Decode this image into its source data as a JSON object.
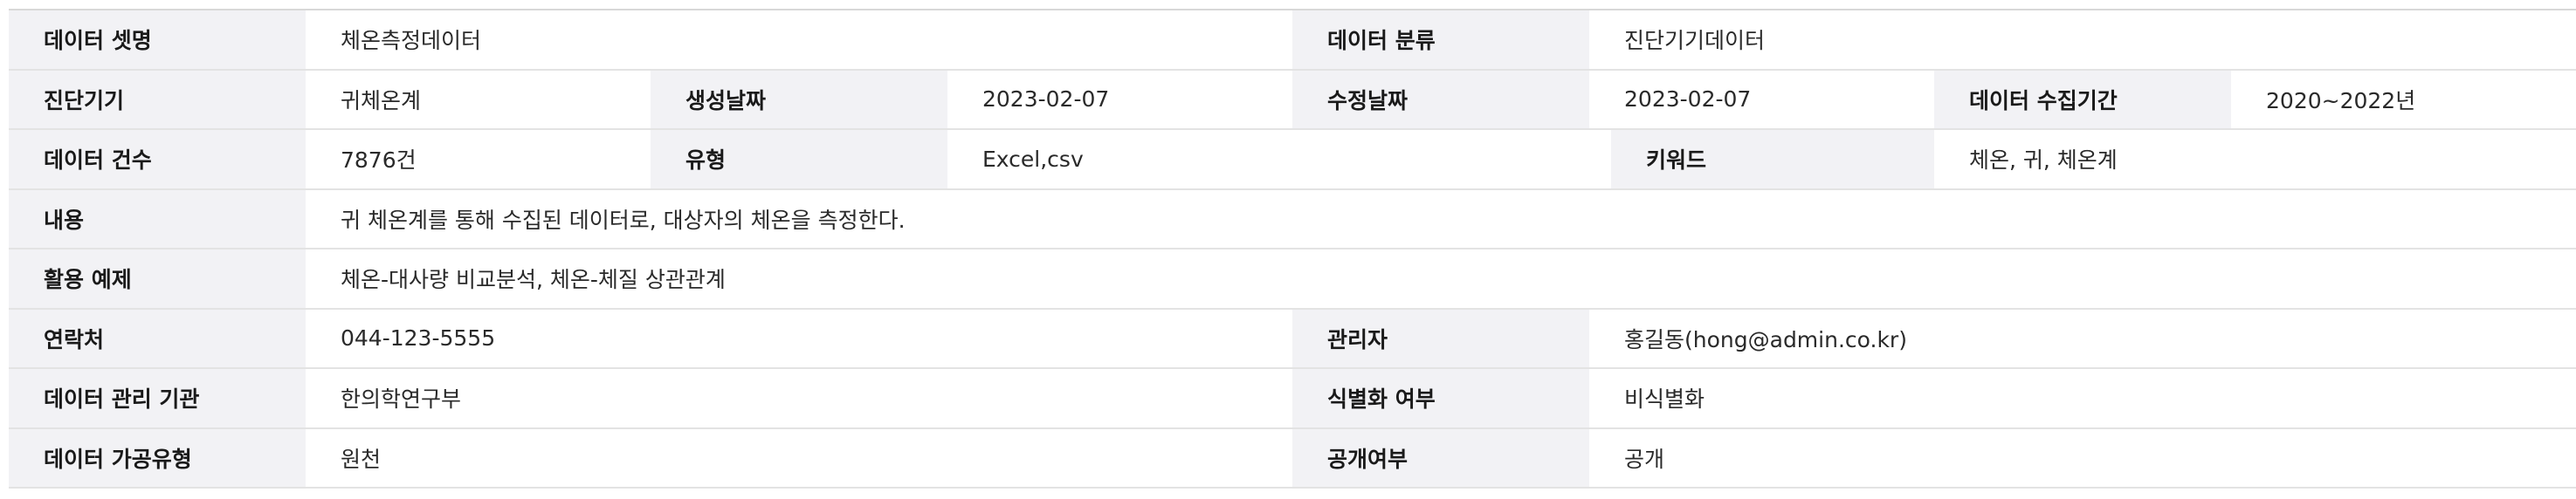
{
  "dataset_info": {
    "name_label": "데이터 셋명",
    "name_value": "체온측정데이터",
    "category_label": "데이터 분류",
    "category_value": "진단기기데이터",
    "device_label": "진단기기",
    "device_value": "귀체온계",
    "created_label": "생성날짜",
    "created_value": "2023-02-07",
    "modified_label": "수정날짜",
    "modified_value": "2023-02-07",
    "period_label": "데이터 수집기간",
    "period_value": "2020~2022년",
    "count_label": "데이터 건수",
    "count_value": "7876건",
    "type_label": "유형",
    "type_value": "Excel,csv",
    "keyword_label": "키워드",
    "keyword_value": "체온, 귀, 체온계",
    "content_label": "내용",
    "content_value": "귀 체온계를 통해 수집된 데이터로, 대상자의 체온을 측정한다.",
    "usage_label": "활용 예제",
    "usage_value": "체온-대사량 비교분석, 체온-체질 상관관계",
    "contact_label": "연락처",
    "contact_value": "044-123-5555",
    "manager_label": "관리자",
    "manager_value": "홍길동(hong@admin.co.kr)",
    "org_label": "데이터 관리 기관",
    "org_value": "한의학연구부",
    "anonymized_label": "식별화 여부",
    "anonymized_value": "비식별화",
    "processing_label": "데이터 가공유형",
    "processing_value": "원천",
    "public_label": "공개여부",
    "public_value": "공개"
  }
}
